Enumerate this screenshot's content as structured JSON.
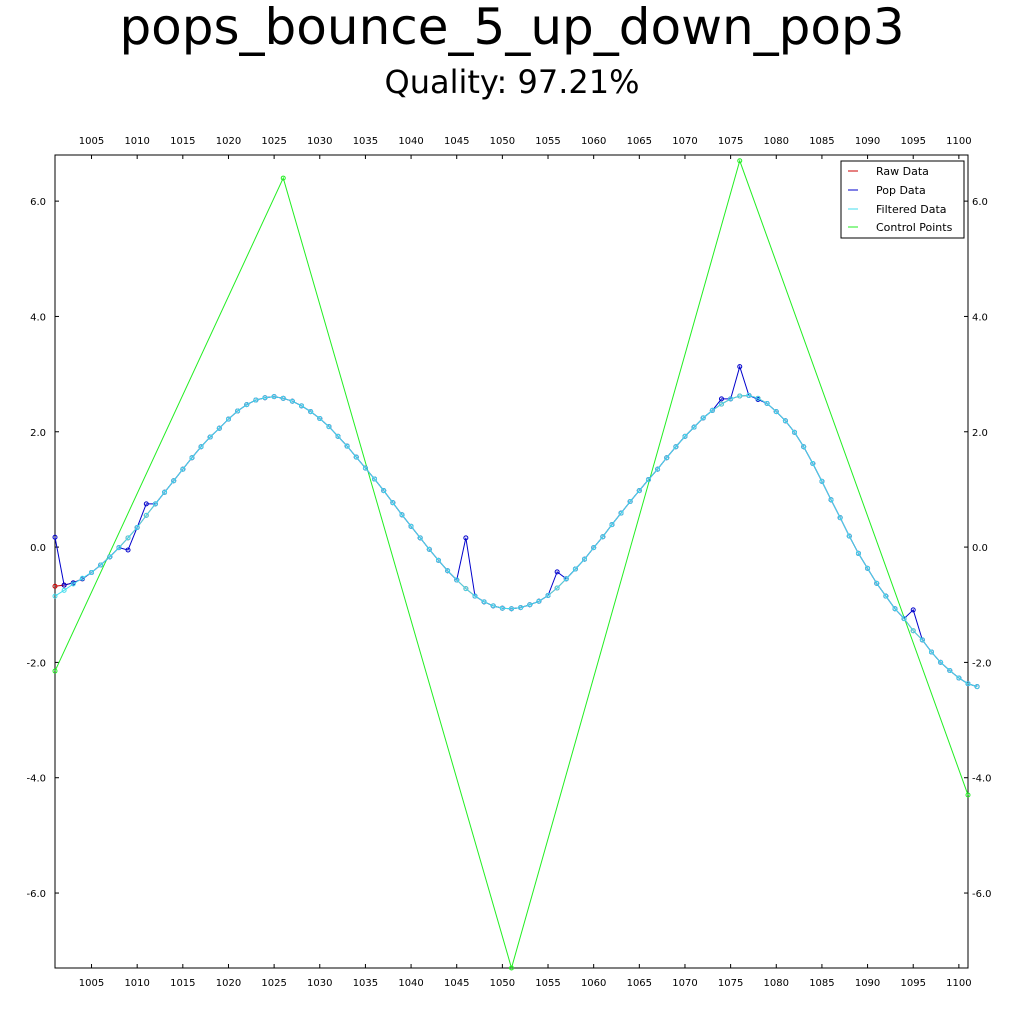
{
  "chart_data": {
    "type": "line",
    "title": "pops_bounce_5_up_down_pop3",
    "subtitle": "Quality: 97.21%",
    "xlim": [
      1001,
      1101
    ],
    "ylim": [
      -7.3,
      6.8
    ],
    "xticks": [
      1005,
      1010,
      1015,
      1020,
      1025,
      1030,
      1035,
      1040,
      1045,
      1050,
      1055,
      1060,
      1065,
      1070,
      1075,
      1080,
      1085,
      1090,
      1095,
      1100
    ],
    "yticks": [
      6.0,
      4.0,
      2.0,
      0.0,
      -2.0,
      -4.0,
      -6.0
    ],
    "ytick_labels": [
      "6.0",
      "4.0",
      "2.0",
      "0.0",
      "-2.0",
      "-4.0",
      "-6.0"
    ],
    "legend_position": "top-right",
    "series": [
      {
        "name": "Raw Data",
        "color": "#cc0000",
        "x_start": 1001,
        "x_step": 1,
        "values": [
          -0.68,
          -0.66,
          -0.62,
          -0.55,
          -0.44,
          -0.31,
          -0.17,
          -0.01,
          0.16,
          0.34,
          0.55,
          0.75,
          0.95,
          1.15,
          1.35,
          1.55,
          1.74,
          1.91,
          2.06,
          2.22,
          2.36,
          2.47,
          2.55,
          2.59,
          2.61,
          2.58,
          2.53,
          2.45,
          2.35,
          2.23,
          2.09,
          1.92,
          1.75,
          1.56,
          1.37,
          1.18,
          0.98,
          0.77,
          0.56,
          0.36,
          0.16,
          -0.04,
          -0.23,
          -0.41,
          -0.57,
          -0.72,
          -0.85,
          -0.95,
          -1.02,
          -1.06,
          -1.07,
          -1.05,
          -1.0,
          -0.94,
          -0.84,
          -0.71,
          -0.55,
          -0.38,
          -0.21,
          -0.01,
          0.18,
          0.39,
          0.59,
          0.79,
          0.98,
          1.17,
          1.35,
          1.55,
          1.74,
          1.92,
          2.08,
          2.24,
          2.37,
          2.48,
          2.57,
          2.62,
          2.63,
          2.58,
          2.49,
          2.35,
          2.19,
          1.99,
          1.74,
          1.45,
          1.14,
          0.82,
          0.51,
          0.19,
          -0.11,
          -0.37,
          -0.63,
          -0.85,
          -1.07,
          -1.24,
          -1.45,
          -1.61,
          -1.82,
          -2.0,
          -2.14,
          -2.27,
          -2.37,
          -2.42
        ]
      },
      {
        "name": "Pop Data",
        "color": "#0000cc",
        "x_start": 1001,
        "x_step": 1,
        "values": [
          0.17,
          -0.66,
          -0.62,
          -0.55,
          -0.44,
          -0.31,
          -0.17,
          -0.01,
          -0.05,
          0.34,
          0.75,
          0.75,
          0.95,
          1.15,
          1.35,
          1.55,
          1.74,
          1.91,
          2.06,
          2.22,
          2.36,
          2.47,
          2.55,
          2.59,
          2.61,
          2.58,
          2.53,
          2.45,
          2.35,
          2.23,
          2.09,
          1.92,
          1.75,
          1.56,
          1.37,
          1.18,
          0.98,
          0.77,
          0.56,
          0.36,
          0.16,
          -0.04,
          -0.23,
          -0.41,
          -0.57,
          0.16,
          -0.85,
          -0.95,
          -1.02,
          -1.06,
          -1.07,
          -1.05,
          -1.0,
          -0.94,
          -0.84,
          -0.43,
          -0.55,
          -0.38,
          -0.21,
          -0.01,
          0.18,
          0.39,
          0.59,
          0.79,
          0.98,
          1.17,
          1.35,
          1.55,
          1.74,
          1.92,
          2.08,
          2.24,
          2.37,
          2.57,
          2.57,
          3.13,
          2.63,
          2.56,
          2.49,
          2.35,
          2.19,
          1.99,
          1.74,
          1.45,
          1.14,
          0.82,
          0.51,
          0.19,
          -0.11,
          -0.37,
          -0.63,
          -0.85,
          -1.07,
          -1.24,
          -1.09,
          -1.61,
          -1.82,
          -2.0,
          -2.14,
          -2.27,
          -2.37,
          -2.42
        ]
      },
      {
        "name": "Filtered Data",
        "color": "#44ddee",
        "x_start": 1001,
        "x_step": 1,
        "values": [
          -0.85,
          -0.75,
          -0.64,
          -0.54,
          -0.44,
          -0.31,
          -0.17,
          -0.01,
          0.16,
          0.34,
          0.55,
          0.75,
          0.95,
          1.15,
          1.35,
          1.55,
          1.74,
          1.91,
          2.06,
          2.22,
          2.36,
          2.47,
          2.55,
          2.59,
          2.61,
          2.58,
          2.53,
          2.45,
          2.35,
          2.23,
          2.09,
          1.92,
          1.75,
          1.56,
          1.37,
          1.18,
          0.98,
          0.77,
          0.56,
          0.36,
          0.16,
          -0.04,
          -0.23,
          -0.41,
          -0.57,
          -0.72,
          -0.85,
          -0.95,
          -1.02,
          -1.06,
          -1.07,
          -1.05,
          -1.0,
          -0.94,
          -0.84,
          -0.71,
          -0.55,
          -0.38,
          -0.21,
          -0.01,
          0.18,
          0.39,
          0.59,
          0.79,
          0.98,
          1.17,
          1.35,
          1.55,
          1.74,
          1.92,
          2.08,
          2.24,
          2.37,
          2.48,
          2.57,
          2.62,
          2.63,
          2.58,
          2.49,
          2.35,
          2.19,
          1.99,
          1.74,
          1.45,
          1.14,
          0.82,
          0.51,
          0.19,
          -0.11,
          -0.37,
          -0.63,
          -0.85,
          -1.07,
          -1.24,
          -1.45,
          -1.61,
          -1.82,
          -2.0,
          -2.14,
          -2.27,
          -2.37,
          -2.42
        ]
      },
      {
        "name": "Control Points",
        "color": "#22ee22",
        "x": [
          1001,
          1026,
          1051,
          1076,
          1101
        ],
        "values": [
          -2.15,
          6.4,
          -7.3,
          6.7,
          -4.3
        ]
      }
    ]
  }
}
